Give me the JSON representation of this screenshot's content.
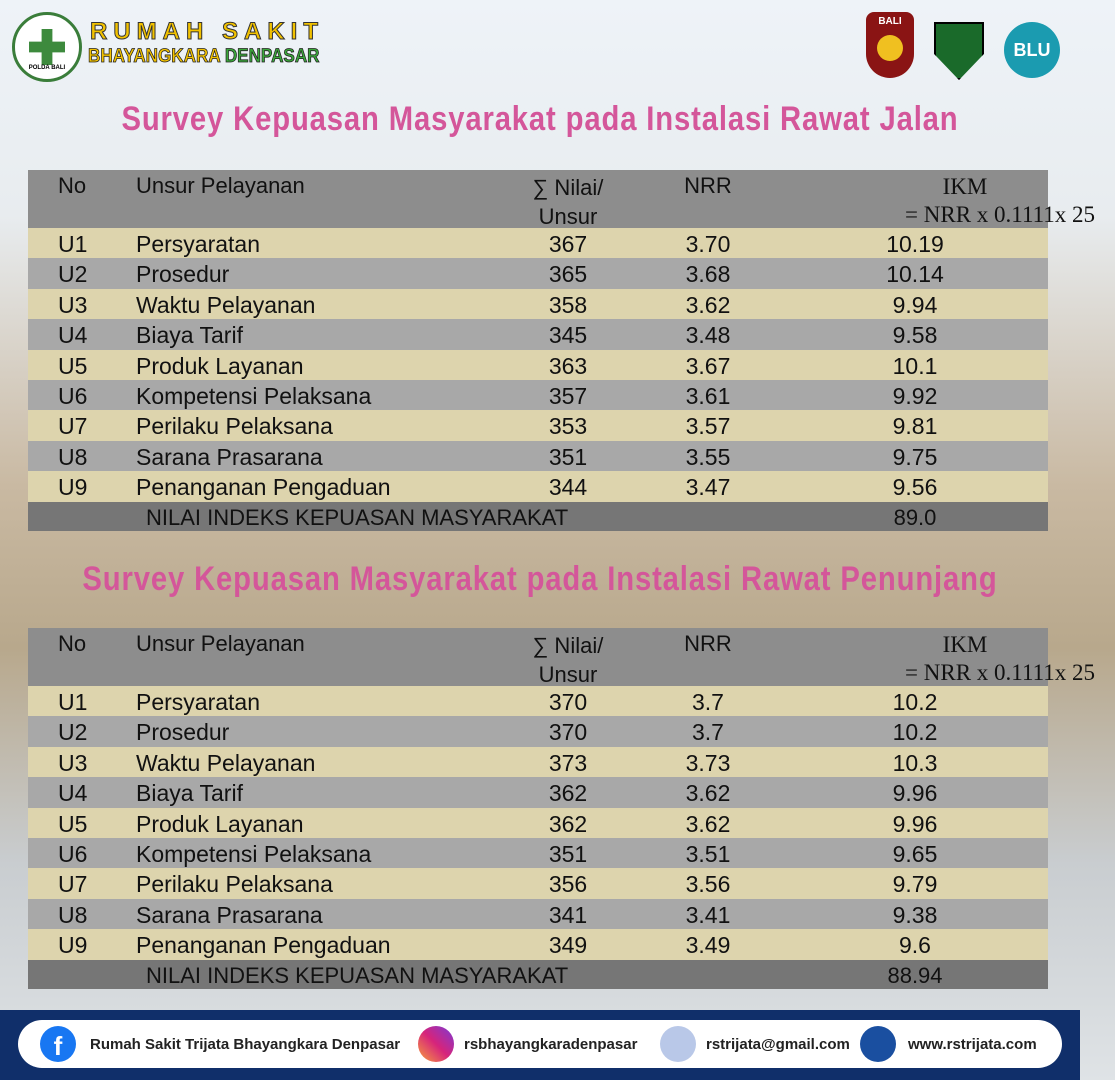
{
  "header": {
    "name_line1": "RUMAH SAKIT",
    "name_line2a": "BHAYANGKARA",
    "name_line2b": "DENPASAR",
    "logo_text": "POLDA BALI",
    "badge": "BALI",
    "blu": "BLU"
  },
  "tables": [
    {
      "title": "Survey Kepuasan Masyarakat pada Instalasi Rawat Jalan",
      "headers": [
        "No",
        "Unsur Pelayanan",
        [
          "∑ Nilai/",
          "Unsur"
        ],
        "NRR",
        [
          "IKM",
          "= NRR x 0.1111x 25"
        ]
      ],
      "rows": [
        [
          "U1",
          "Persyaratan",
          "367",
          "3.70",
          "10.19"
        ],
        [
          "U2",
          "Prosedur",
          "365",
          "3.68",
          "10.14"
        ],
        [
          "U3",
          "Waktu Pelayanan",
          "358",
          "3.62",
          "9.94"
        ],
        [
          "U4",
          "Biaya Tarif",
          "345",
          "3.48",
          "9.58"
        ],
        [
          "U5",
          "Produk Layanan",
          "363",
          "3.67",
          "10.1"
        ],
        [
          "U6",
          "Kompetensi Pelaksana",
          "357",
          "3.61",
          "9.92"
        ],
        [
          "U7",
          "Perilaku Pelaksana",
          "353",
          "3.57",
          "9.81"
        ],
        [
          "U8",
          "Sarana Prasarana",
          "351",
          "3.55",
          "9.75"
        ],
        [
          "U9",
          "Penanganan Pengaduan",
          "344",
          "3.47",
          "9.56"
        ]
      ],
      "footer": {
        "label": "NILAI INDEKS KEPUASAN MASYARAKAT",
        "value": "89.0"
      }
    },
    {
      "title": "Survey Kepuasan Masyarakat pada Instalasi Rawat Penunjang",
      "headers": [
        "No",
        "Unsur Pelayanan",
        [
          "∑ Nilai/",
          "Unsur"
        ],
        "NRR",
        [
          "IKM",
          "= NRR x 0.1111x 25"
        ]
      ],
      "rows": [
        [
          "U1",
          "Persyaratan",
          "370",
          "3.7",
          "10.2"
        ],
        [
          "U2",
          "Prosedur",
          "370",
          "3.7",
          "10.2"
        ],
        [
          "U3",
          "Waktu Pelayanan",
          "373",
          "3.73",
          "10.3"
        ],
        [
          "U4",
          "Biaya Tarif",
          "362",
          "3.62",
          "9.96"
        ],
        [
          "U5",
          "Produk Layanan",
          "362",
          "3.62",
          "9.96"
        ],
        [
          "U6",
          "Kompetensi Pelaksana",
          "351",
          "3.51",
          "9.65"
        ],
        [
          "U7",
          "Perilaku Pelaksana",
          "356",
          "3.56",
          "9.79"
        ],
        [
          "U8",
          "Sarana Prasarana",
          "341",
          "3.41",
          "9.38"
        ],
        [
          "U9",
          "Penanganan Pengaduan",
          "349",
          "3.49",
          "9.6"
        ]
      ],
      "footer": {
        "label": "NILAI INDEKS KEPUASAN MASYARAKAT",
        "value": "88.94"
      }
    }
  ],
  "contacts": {
    "facebook": "Rumah Sakit Trijata Bhayangkara Denpasar",
    "instagram": "rsbhayangkaradenpasar",
    "email": "rstrijata@gmail.com",
    "website": "www.rstrijata.com"
  }
}
